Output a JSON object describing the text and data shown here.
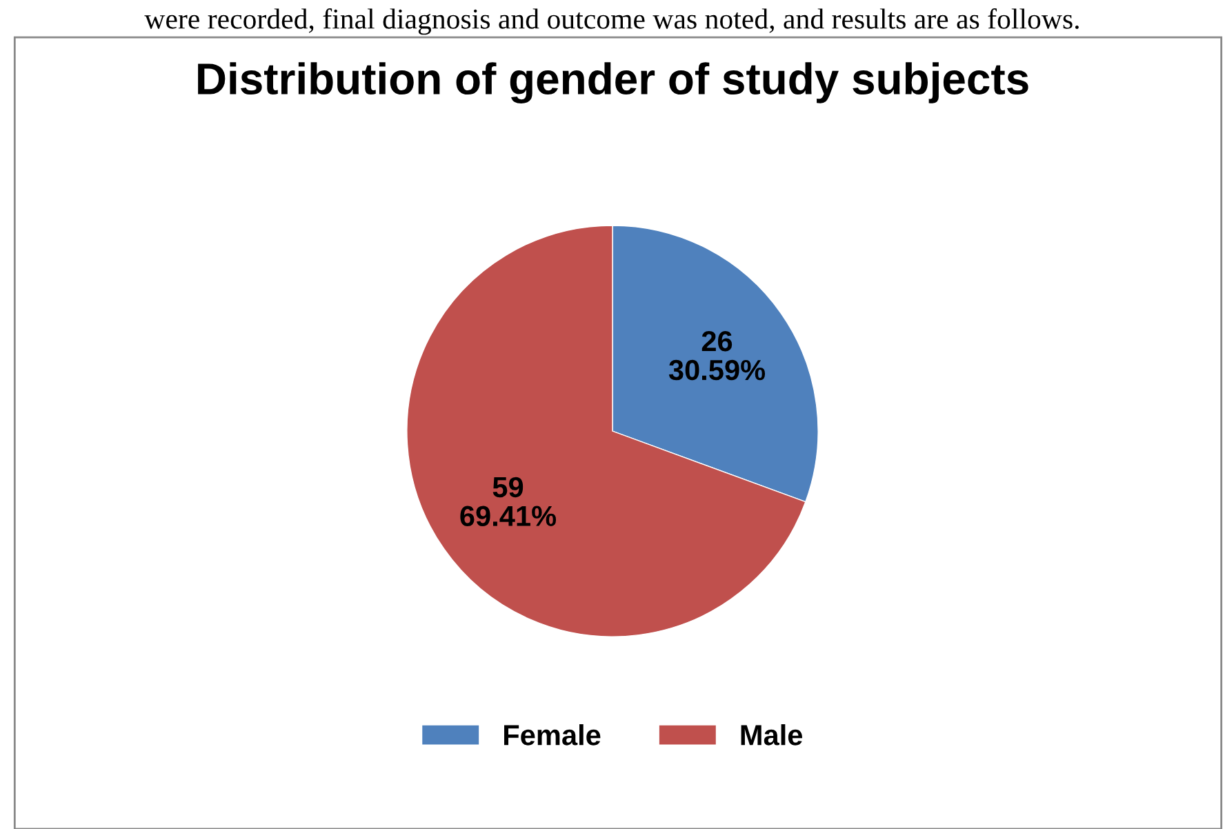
{
  "chart_data": {
    "type": "pie",
    "title": "Distribution of gender of study subjects",
    "annotations": [
      "were recorded, final diagnosis and outcome was noted, and results are as follows."
    ],
    "categories": [
      "Female",
      "Male"
    ],
    "values": [
      26,
      59
    ],
    "colors": [
      "#4f81bd",
      "#c0504d"
    ],
    "value_labels": [
      "26\n30.59%",
      "59\n69.41%"
    ],
    "legend": "bottom"
  }
}
